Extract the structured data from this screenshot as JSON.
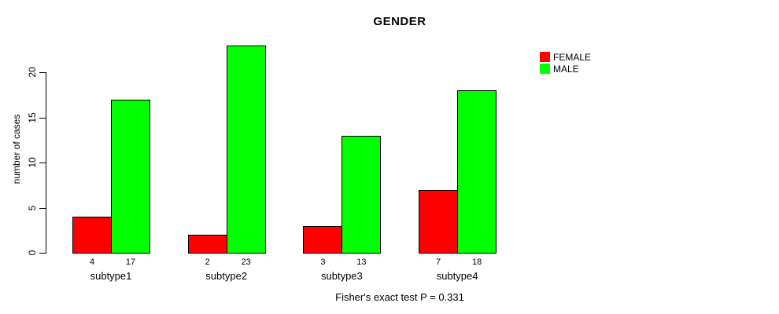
{
  "chart_data": {
    "type": "bar",
    "title": "GENDER",
    "xlabel": "",
    "ylabel": "number of cases",
    "categories": [
      "subtype1",
      "subtype2",
      "subtype3",
      "subtype4"
    ],
    "series": [
      {
        "name": "FEMALE",
        "color": "#ff0000",
        "values": [
          4,
          2,
          3,
          7
        ]
      },
      {
        "name": "MALE",
        "color": "#00ff00",
        "values": [
          17,
          23,
          13,
          18
        ]
      }
    ],
    "bar_value_labels": [
      [
        "4",
        "17"
      ],
      [
        "2",
        "23"
      ],
      [
        "3",
        "13"
      ],
      [
        "7",
        "18"
      ]
    ],
    "yticks": [
      0,
      5,
      10,
      15,
      20
    ],
    "ylim": [
      0,
      23
    ],
    "grid": false,
    "legend_position": "top-right",
    "legend_entries": [
      "FEMALE",
      "MALE"
    ],
    "annotation": "Fisher's exact test P = 0.331"
  }
}
